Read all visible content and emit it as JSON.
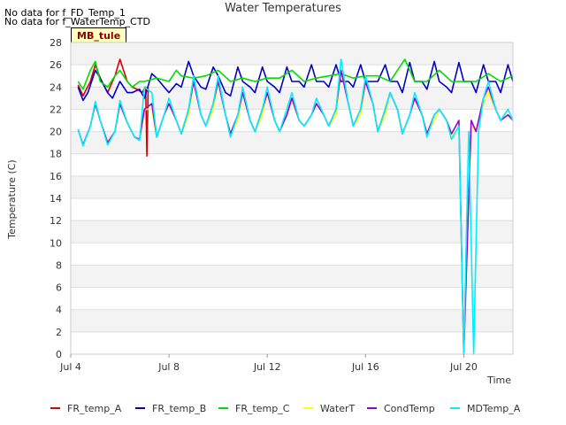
{
  "notices": [
    "No data for f_FD_Temp_1",
    "No data for f_WaterTemp_CTD"
  ],
  "tag": "MB_tule",
  "chart_data": {
    "type": "line",
    "title": "Water Temperatures",
    "xlabel": "Time",
    "ylabel": "Temperature (C)",
    "ylim": [
      0,
      28
    ],
    "yticks": [
      0,
      2,
      4,
      6,
      8,
      10,
      12,
      14,
      16,
      18,
      20,
      22,
      24,
      26,
      28
    ],
    "xlim": [
      "2024-07-04",
      "2024-07-22"
    ],
    "xticks": [
      "Jul 4",
      "Jul 8",
      "Jul 12",
      "Jul 16",
      "Jul 20"
    ],
    "xtick_values": [
      0,
      4,
      8,
      12,
      16
    ],
    "grid": "horizontal alternating bands",
    "legend_position": "bottom",
    "series": [
      {
        "name": "FR_temp_A",
        "color": "#dd0000",
        "x": [
          0.3,
          0.5,
          0.8,
          1.0,
          1.2,
          1.5,
          1.8,
          2.0,
          2.3,
          2.5,
          2.7,
          2.9,
          3.05,
          3.1,
          3.15
        ],
        "y": [
          24.2,
          23.2,
          24.5,
          26.0,
          24.8,
          23.5,
          25.0,
          26.5,
          24.5,
          24.0,
          23.8,
          23.5,
          24.0,
          17.8,
          24.0
        ]
      },
      {
        "name": "FR_temp_B",
        "color": "#0000cc",
        "x": [
          0.3,
          0.5,
          0.7,
          1.0,
          1.2,
          1.5,
          1.7,
          2.0,
          2.3,
          2.5,
          2.8,
          3.0,
          3.3,
          3.5,
          3.8,
          4.0,
          4.3,
          4.5,
          4.8,
          5.0,
          5.3,
          5.5,
          5.8,
          6.0,
          6.3,
          6.5,
          6.8,
          7.0,
          7.3,
          7.5,
          7.8,
          8.0,
          8.3,
          8.5,
          8.8,
          9.0,
          9.3,
          9.5,
          9.8,
          10.0,
          10.3,
          10.5,
          10.8,
          11.0,
          11.3,
          11.5,
          11.8,
          12.0,
          12.3,
          12.5,
          12.8,
          13.0,
          13.3,
          13.5,
          13.8,
          14.0,
          14.3,
          14.5,
          14.8,
          15.0,
          15.3,
          15.5,
          15.8,
          16.0,
          16.3,
          16.5,
          16.8,
          17.0,
          17.3,
          17.5,
          17.8,
          18.0
        ],
        "y": [
          24.0,
          22.8,
          23.5,
          25.5,
          24.8,
          23.5,
          23.0,
          24.5,
          23.5,
          23.5,
          23.8,
          23.0,
          25.2,
          24.8,
          24.0,
          23.5,
          24.3,
          24.0,
          26.3,
          25.0,
          24.0,
          23.8,
          25.8,
          25.0,
          23.5,
          23.2,
          25.8,
          24.5,
          24.0,
          23.5,
          25.8,
          24.5,
          24.0,
          23.5,
          25.8,
          24.5,
          24.5,
          24.0,
          26.0,
          24.5,
          24.5,
          24.0,
          26.0,
          24.5,
          24.5,
          24.0,
          26.0,
          24.5,
          24.5,
          24.5,
          26.0,
          24.5,
          24.5,
          23.5,
          26.2,
          24.5,
          24.5,
          23.8,
          26.3,
          24.5,
          24.0,
          23.5,
          26.2,
          24.5,
          24.5,
          23.5,
          26.0,
          24.5,
          24.5,
          23.5,
          26.0,
          24.5
        ]
      },
      {
        "name": "FR_temp_C",
        "color": "#00dd00",
        "x": [
          0.3,
          0.5,
          0.8,
          1.0,
          1.2,
          1.5,
          1.8,
          2.0,
          2.3,
          2.5,
          2.8,
          3.0,
          3.5,
          4.0,
          4.3,
          4.5,
          5.0,
          5.5,
          6.0,
          6.5,
          7.0,
          7.5,
          8.0,
          8.5,
          9.0,
          9.5,
          10.0,
          10.5,
          11.0,
          11.5,
          12.0,
          12.5,
          13.0,
          13.3,
          13.6,
          14.0,
          14.5,
          15.0,
          15.5,
          16.0,
          16.5,
          17.0,
          17.5,
          18.0
        ],
        "y": [
          24.5,
          23.8,
          25.5,
          26.3,
          24.5,
          24.0,
          25.0,
          25.5,
          24.5,
          24.0,
          24.5,
          24.5,
          24.8,
          24.5,
          25.5,
          25.0,
          24.8,
          25.0,
          25.5,
          24.5,
          24.8,
          24.5,
          24.8,
          24.8,
          25.5,
          24.5,
          24.8,
          25.0,
          25.2,
          24.8,
          25.0,
          25.0,
          24.5,
          25.5,
          26.5,
          24.5,
          24.5,
          25.5,
          24.5,
          24.5,
          24.5,
          25.2,
          24.5,
          25.0
        ]
      },
      {
        "name": "WaterT",
        "color": "#ffff00",
        "x": [
          0.3,
          0.5,
          0.8,
          1.0,
          1.2,
          1.5,
          1.8,
          2.0,
          2.3,
          2.6,
          2.8,
          3.0,
          3.3,
          3.5,
          3.8,
          4.0,
          4.3,
          4.5,
          4.8,
          5.0,
          5.3,
          5.5,
          5.8,
          6.0,
          6.3,
          6.5,
          6.8,
          7.0,
          7.3,
          7.5,
          7.8,
          8.0,
          8.3,
          8.5,
          8.8,
          9.0,
          9.3,
          9.5,
          9.8,
          10.0,
          10.3,
          10.5,
          10.8,
          11.0,
          11.3,
          11.5,
          11.8,
          12.0,
          12.3,
          12.5,
          12.8,
          13.0,
          13.3,
          13.5,
          13.8,
          14.0,
          14.3,
          14.5,
          14.8,
          15.0,
          15.3,
          15.5,
          15.8,
          16.0,
          16.3,
          16.5,
          16.8,
          17.0,
          17.3,
          17.5,
          17.8,
          18.0
        ],
        "y": [
          20.2,
          18.8,
          20.5,
          22.5,
          21.0,
          19.0,
          20.0,
          22.5,
          20.8,
          19.5,
          19.3,
          22.0,
          22.0,
          19.5,
          21.5,
          22.5,
          21.0,
          19.8,
          21.5,
          24.5,
          21.5,
          20.5,
          22.0,
          24.5,
          21.5,
          19.8,
          21.0,
          23.5,
          21.0,
          20.0,
          21.5,
          23.5,
          21.0,
          20.0,
          21.5,
          23.0,
          21.0,
          20.5,
          21.5,
          22.5,
          21.5,
          20.5,
          21.5,
          25.5,
          22.5,
          20.5,
          21.5,
          24.5,
          22.5,
          20.0,
          21.5,
          23.5,
          22.0,
          19.8,
          21.5,
          23.0,
          21.5,
          19.8,
          21.0,
          22.0,
          21.0,
          19.5,
          20.5,
          0.0,
          20.5,
          20.0,
          22.5,
          23.5,
          22.0,
          21.0,
          21.5,
          21.0
        ]
      },
      {
        "name": "CondTemp",
        "color": "#9900cc",
        "x": [
          0.3,
          0.5,
          0.8,
          1.0,
          1.2,
          1.5,
          1.8,
          2.0,
          2.3,
          2.6,
          2.8,
          3.0,
          3.3,
          3.5,
          3.8,
          4.0,
          4.3,
          4.5,
          4.8,
          5.0,
          5.3,
          5.5,
          5.8,
          6.0,
          6.3,
          6.5,
          6.8,
          7.0,
          7.3,
          7.5,
          7.8,
          8.0,
          8.3,
          8.5,
          8.8,
          9.0,
          9.3,
          9.5,
          9.8,
          10.0,
          10.3,
          10.5,
          10.8,
          11.0,
          11.3,
          11.5,
          11.8,
          12.0,
          12.3,
          12.5,
          12.8,
          13.0,
          13.3,
          13.5,
          13.8,
          14.0,
          14.3,
          14.5,
          14.8,
          15.0,
          15.3,
          15.5,
          15.8,
          16.0,
          16.3,
          16.5,
          16.8,
          17.0,
          17.3,
          17.5,
          17.8,
          18.0
        ],
        "y": [
          20.2,
          18.8,
          20.5,
          22.5,
          21.0,
          19.0,
          20.0,
          22.5,
          20.8,
          19.5,
          19.3,
          22.0,
          22.5,
          19.5,
          21.5,
          22.5,
          21.0,
          19.8,
          22.0,
          24.5,
          21.5,
          20.5,
          22.5,
          24.5,
          21.5,
          19.8,
          21.5,
          23.5,
          21.0,
          20.0,
          22.0,
          23.5,
          21.0,
          20.0,
          21.5,
          23.0,
          21.0,
          20.5,
          21.5,
          22.5,
          21.5,
          20.5,
          22.0,
          25.5,
          22.5,
          20.5,
          22.0,
          24.5,
          22.5,
          20.0,
          22.0,
          23.5,
          22.0,
          19.8,
          21.5,
          23.0,
          21.5,
          19.8,
          21.5,
          22.0,
          21.0,
          19.8,
          21.0,
          0.0,
          21.0,
          20.0,
          23.0,
          24.0,
          22.0,
          21.0,
          21.5,
          21.0
        ]
      },
      {
        "name": "MDTemp_A",
        "color": "#00eeff",
        "x": [
          0.3,
          0.5,
          0.8,
          1.0,
          1.2,
          1.5,
          1.8,
          2.0,
          2.3,
          2.6,
          2.8,
          3.0,
          3.3,
          3.5,
          3.8,
          4.0,
          4.3,
          4.5,
          4.8,
          5.0,
          5.3,
          5.5,
          5.8,
          6.0,
          6.3,
          6.5,
          6.8,
          7.0,
          7.3,
          7.5,
          7.8,
          8.0,
          8.3,
          8.5,
          8.8,
          9.0,
          9.3,
          9.5,
          9.8,
          10.0,
          10.3,
          10.5,
          10.8,
          11.0,
          11.3,
          11.5,
          11.8,
          12.0,
          12.3,
          12.5,
          12.8,
          13.0,
          13.3,
          13.5,
          13.8,
          14.0,
          14.3,
          14.5,
          14.8,
          15.0,
          15.3,
          15.5,
          15.8,
          16.0,
          16.2,
          16.4,
          16.6,
          16.8,
          17.0,
          17.3,
          17.5,
          17.8,
          18.0
        ],
        "y": [
          20.2,
          18.7,
          20.5,
          22.7,
          21.0,
          18.8,
          20.0,
          22.8,
          20.8,
          19.5,
          19.2,
          24.0,
          23.5,
          19.5,
          21.5,
          23.0,
          21.0,
          19.8,
          22.0,
          25.0,
          21.5,
          20.5,
          22.5,
          25.0,
          21.5,
          19.5,
          21.5,
          24.0,
          21.0,
          20.0,
          22.0,
          24.0,
          21.0,
          20.0,
          22.0,
          23.5,
          21.0,
          20.5,
          21.5,
          23.0,
          21.5,
          20.5,
          22.0,
          26.5,
          22.5,
          20.5,
          22.0,
          25.0,
          22.5,
          20.0,
          22.0,
          23.5,
          22.0,
          19.8,
          21.5,
          23.5,
          21.5,
          19.5,
          21.5,
          22.0,
          21.0,
          19.3,
          20.5,
          0.0,
          20.0,
          0.0,
          20.0,
          23.0,
          24.5,
          22.0,
          21.0,
          22.0,
          21.0
        ]
      }
    ]
  }
}
